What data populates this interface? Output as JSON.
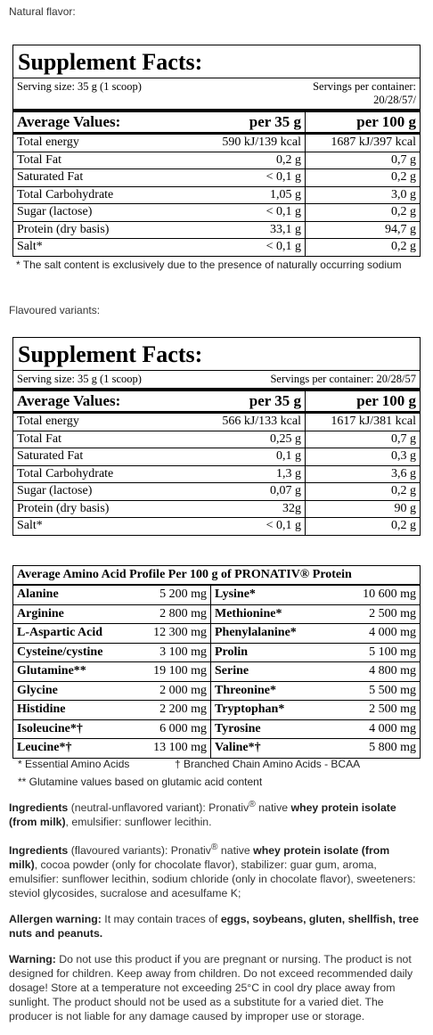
{
  "natural": {
    "label": "Natural flavor:",
    "facts": {
      "title": "Supplement Facts:",
      "serving": "Serving size: 35 g (1 scoop)",
      "servings_per_container": [
        "Servings per container:",
        "20/28/57/"
      ],
      "header": [
        "Average Values:",
        "per 35 g",
        "per 100 g"
      ],
      "rows": [
        [
          "Total energy",
          "590 kJ/139 kcal",
          "1687 kJ/397 kcal"
        ],
        [
          "Total Fat",
          "0,2 g",
          "0,7 g"
        ],
        [
          "Saturated Fat",
          "< 0,1 g",
          "0,2 g"
        ],
        [
          "Total Carbohydrate",
          "1,05 g",
          "3,0 g"
        ],
        [
          "Sugar (lactose)",
          "< 0,1 g",
          "0,2 g"
        ],
        [
          "Protein (dry basis)",
          "33,1 g",
          "94,7 g"
        ],
        [
          "Salt*",
          "< 0,1 g",
          "0,2 g"
        ]
      ]
    },
    "footnote": "* The salt content is exclusively due to the presence of naturally occurring sodium"
  },
  "flavoured": {
    "label": "Flavoured variants:",
    "facts": {
      "title": "Supplement Facts:",
      "serving": "Serving size: 35 g (1 scoop)",
      "servings_per_container": [
        "Servings per container: 20/28/57"
      ],
      "header": [
        "Average Values:",
        "per 35 g",
        "per 100 g"
      ],
      "rows": [
        [
          "Total energy",
          "566 kJ/133 kcal",
          "1617 kJ/381 kcal"
        ],
        [
          "Total Fat",
          "0,25 g",
          "0,7 g"
        ],
        [
          "Saturated Fat",
          "0,1 g",
          "0,3 g"
        ],
        [
          "Total Carbohydrate",
          "1,3 g",
          "3,6 g"
        ],
        [
          "Sugar (lactose)",
          "0,07 g",
          "0,2 g"
        ],
        [
          "Protein (dry basis)",
          "32g",
          "90 g"
        ],
        [
          "Salt*",
          "< 0,1 g",
          "0,2 g"
        ]
      ]
    }
  },
  "amino": {
    "title": "Average Amino Acid Profile Per 100 g of PRONATIV® Protein",
    "rows": [
      [
        "Alanine",
        "5 200 mg",
        "Lysine*",
        "10 600 mg"
      ],
      [
        "Arginine",
        "2 800 mg",
        "Methionine*",
        "2 500 mg"
      ],
      [
        "L-Aspartic Acid",
        "12 300 mg",
        "Phenylalanine*",
        "4 000 mg"
      ],
      [
        "Cysteine/cystine",
        "3 100 mg",
        "Prolin",
        "5 100 mg"
      ],
      [
        "Glutamine**",
        "19 100 mg",
        "Serine",
        "4 800 mg"
      ],
      [
        "Glycine",
        "2 000 mg",
        "Threonine*",
        "5 500 mg"
      ],
      [
        "Histidine",
        "2 200 mg",
        "Tryptophan*",
        "2 500 mg"
      ],
      [
        "Isoleucine*†",
        "6 000 mg",
        "Tyrosine",
        "4 000 mg"
      ],
      [
        "Leucine*†",
        "13 100 mg",
        "Valine*†",
        "5 800 mg"
      ]
    ]
  },
  "amino_notes": [
    "* Essential Amino Acids",
    "† Branched Chain Amino Acids - BCAA",
    "** Glutamine values based on glutamic acid content"
  ],
  "paragraphs": [
    [
      {
        "text": "Ingredients",
        "style": "bold"
      },
      {
        "text": " (neutral-unflavored variant): Pronativ",
        "style": "normal"
      },
      {
        "text": "®",
        "style": "sup"
      },
      {
        "text": " native ",
        "style": "normal"
      },
      {
        "text": "whey protein isolate (from milk)",
        "style": "bold"
      },
      {
        "text": ", emulsifier: sunflower lecithin.",
        "style": "normal"
      }
    ],
    [
      {
        "text": "Ingredients",
        "style": "bold"
      },
      {
        "text": " (flavoured variants): Pronativ",
        "style": "normal"
      },
      {
        "text": "®",
        "style": "sup"
      },
      {
        "text": " native ",
        "style": "normal"
      },
      {
        "text": "whey protein isolate (from milk)",
        "style": "bold"
      },
      {
        "text": ", cocoa powder (only for chocolate flavor), stabilizer: guar gum, aroma, emulsifier: sunflower lecithin, sodium chloride (only in chocolate flavor), sweeteners: steviol glycosides, sucralose and acesulfame K;",
        "style": "normal"
      }
    ],
    [
      {
        "text": "Allergen warning:",
        "style": "bold"
      },
      {
        "text": " It may contain traces of ",
        "style": "normal"
      },
      {
        "text": "eggs, soybeans, gluten, shellfish, tree nuts and peanuts.",
        "style": "bold"
      }
    ],
    [
      {
        "text": "Warning:",
        "style": "bold"
      },
      {
        "text": " Do not use this product if you are pregnant or nursing. The product is not designed for children. Keep away from children. Do not exceed recommended daily dosage! Store at a temperature not exceeding 25°C in cool dry place away from sunlight. The product should not be used as a substitute for a varied diet. The producer is not liable for any damage caused by improper use or storage.",
        "style": "normal"
      }
    ]
  ]
}
